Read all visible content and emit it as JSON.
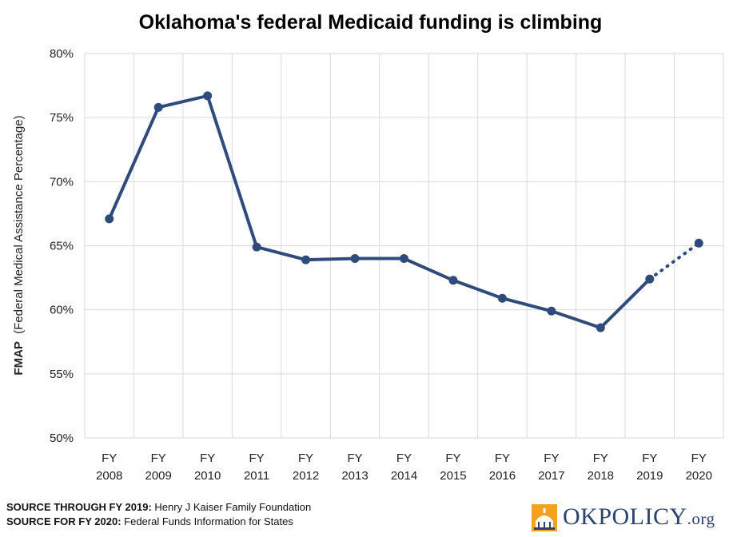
{
  "chart_data": {
    "type": "line",
    "title": "Oklahoma's federal Medicaid funding is climbing",
    "ylabel_bold": "FMAP",
    "ylabel_rest": "(Federal Medical Assistance Percentage)",
    "xlabel": "",
    "categories": [
      [
        "FY",
        "2008"
      ],
      [
        "FY",
        "2009"
      ],
      [
        "FY",
        "2010"
      ],
      [
        "FY",
        "2011"
      ],
      [
        "FY",
        "2012"
      ],
      [
        "FY",
        "2013"
      ],
      [
        "FY",
        "2014"
      ],
      [
        "FY",
        "2015"
      ],
      [
        "FY",
        "2016"
      ],
      [
        "FY",
        "2017"
      ],
      [
        "FY",
        "2018"
      ],
      [
        "FY",
        "2019"
      ],
      [
        "FY",
        "2020"
      ]
    ],
    "values": [
      67.1,
      75.8,
      76.7,
      64.9,
      63.9,
      64.0,
      64.0,
      62.3,
      60.9,
      59.9,
      58.6,
      62.4,
      65.2
    ],
    "projected_from_index": 11,
    "ylim": [
      50,
      80
    ],
    "yticks": [
      50,
      55,
      60,
      65,
      70,
      75,
      80
    ],
    "ytick_labels": [
      "50%",
      "55%",
      "60%",
      "65%",
      "70%",
      "75%",
      "80%"
    ],
    "grid": true,
    "legend": "none",
    "line_color": "#2f4b7c"
  },
  "sources": [
    {
      "label": "SOURCE THROUGH FY 2019:",
      "text": "Henry J Kaiser Family Foundation"
    },
    {
      "label": "SOURCE FOR FY 2020:",
      "text": "Federal Funds Information for States"
    }
  ],
  "logo": {
    "main": "OKPOLICY",
    "suffix": ".org",
    "icon": "capitol-dome-icon"
  }
}
